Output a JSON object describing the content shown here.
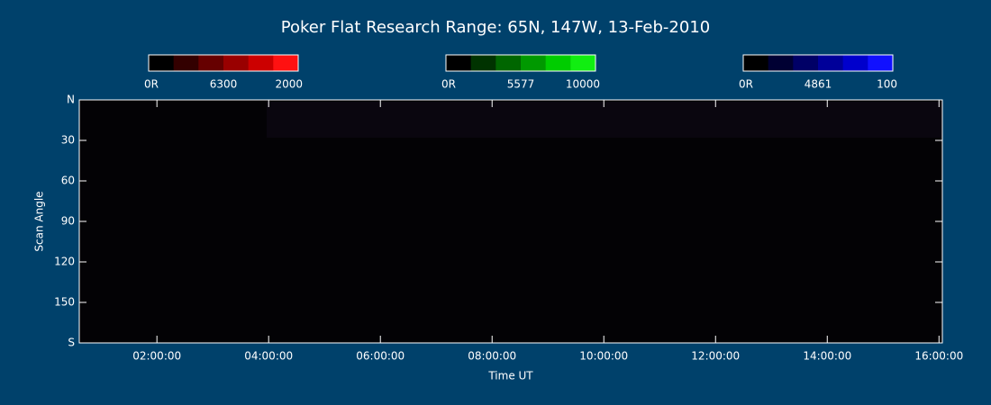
{
  "chart_data": {
    "type": "heatmap",
    "title": "Poker Flat Research Range: 65N, 147W, 13-Feb-2010",
    "xlabel": "Time UT",
    "ylabel": "Scan Angle",
    "xlim": [
      0.61,
      16.06
    ],
    "xticks": [
      {
        "value": 2,
        "label": "02:00:00"
      },
      {
        "value": 4,
        "label": "04:00:00"
      },
      {
        "value": 6,
        "label": "06:00:00"
      },
      {
        "value": 8,
        "label": "08:00:00"
      },
      {
        "value": 10,
        "label": "10:00:00"
      },
      {
        "value": 12,
        "label": "12:00:00"
      },
      {
        "value": 14,
        "label": "14:00:00"
      },
      {
        "value": 16,
        "label": "16:00:00"
      }
    ],
    "ylim": [
      0,
      180
    ],
    "yticks": [
      {
        "value": 0,
        "label": "N"
      },
      30,
      60,
      90,
      120,
      150,
      {
        "value": 180,
        "label": "S"
      }
    ],
    "colorbars": [
      {
        "label": "6300",
        "range": [
          {
            "value": 0,
            "label": "0R"
          },
          2000
        ],
        "colors": [
          "#000000",
          "#330000",
          "#660000",
          "#990000",
          "#cc0000",
          "#ff1111"
        ]
      },
      {
        "label": "5577",
        "range": [
          {
            "value": 0,
            "label": "0R"
          },
          10000
        ],
        "colors": [
          "#000000",
          "#003300",
          "#006600",
          "#009900",
          "#00cc00",
          "#11ee11"
        ]
      },
      {
        "label": "4861",
        "range": [
          {
            "value": 0,
            "label": "0R"
          },
          100
        ],
        "colors": [
          "#000000",
          "#000033",
          "#000066",
          "#000099",
          "#0000cc",
          "#1111ff"
        ]
      }
    ]
  }
}
